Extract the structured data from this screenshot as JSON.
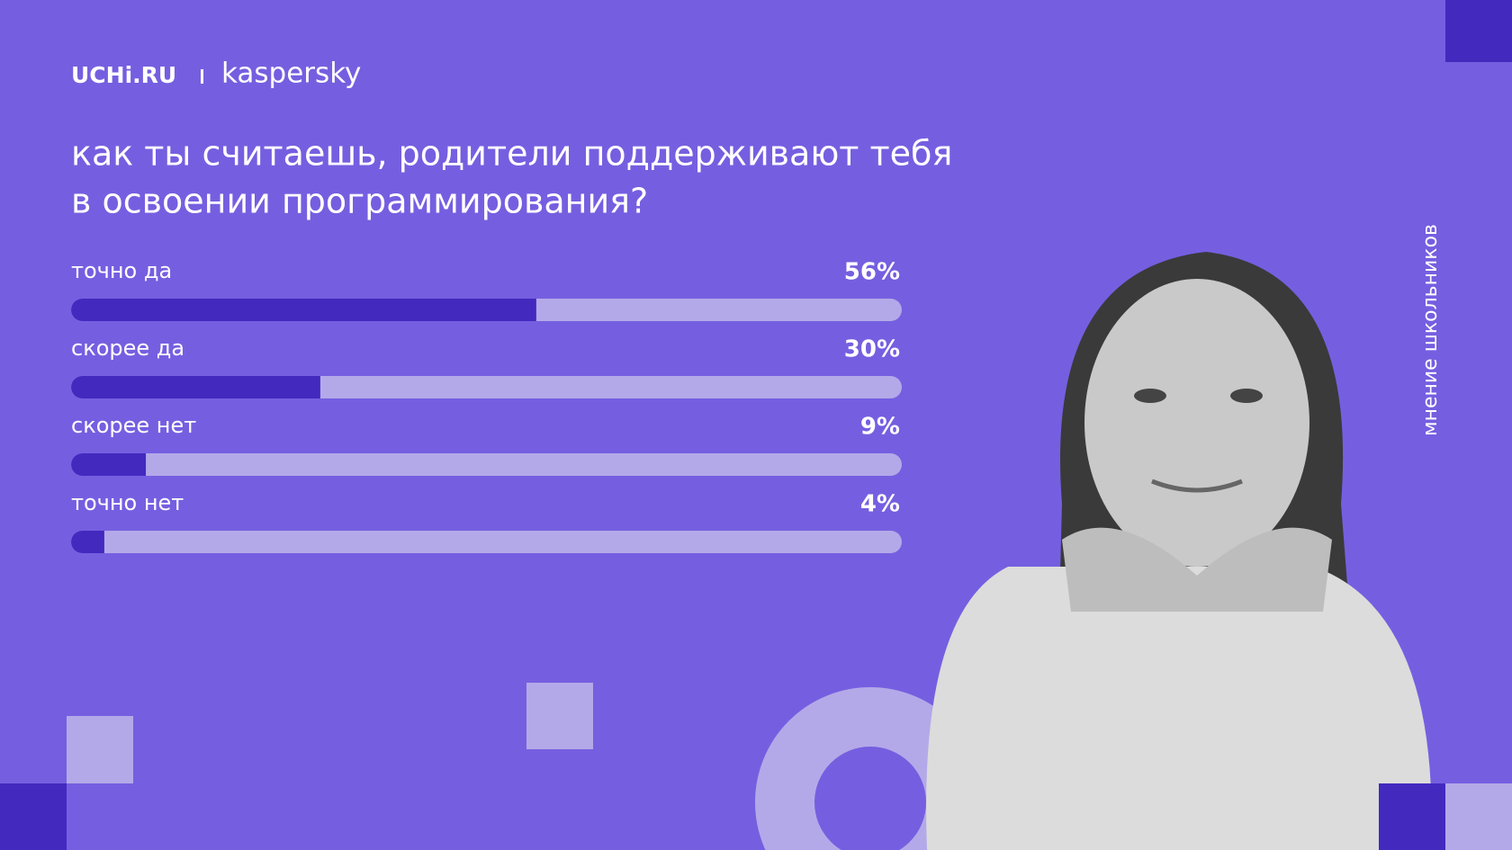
{
  "brand": {
    "left": "UCHi.RU",
    "right": "kaspersky"
  },
  "side_note": "мнение школьников",
  "chart_data": {
    "type": "bar",
    "title": [
      "как ты считаешь, родители поддерживают тебя",
      "в освоении программирования?"
    ],
    "categories": [
      "точно да",
      "скорее да",
      "скорее нет",
      "точно нет"
    ],
    "values": [
      56,
      30,
      9,
      4
    ],
    "value_labels": [
      "56%",
      "30%",
      "9%",
      "4%"
    ],
    "xlim": [
      0,
      100
    ],
    "color": "#4429bf",
    "track_color": "#b4a9e8"
  }
}
